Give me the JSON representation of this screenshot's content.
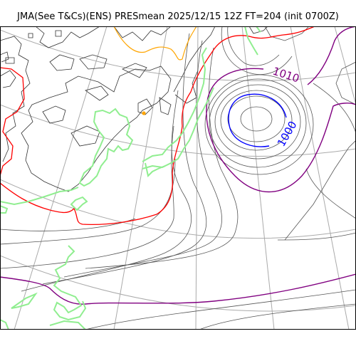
{
  "figure": {
    "title": "JMA(See T&Cs)(ENS) PRESmean 2025/12/15 12Z FT=204 (init 0700Z)"
  },
  "map": {
    "contour_labels": [
      {
        "text": "1010",
        "color": "#800080"
      },
      {
        "text": "1000",
        "color": "#0000ff"
      }
    ],
    "colors": {
      "isobar": "#555555",
      "isobar_1010": "#800080",
      "isobar_1000": "#0000ff",
      "isobar_1020": "#ff0000",
      "coastline": "#333333",
      "graticule": "#aaaaaa",
      "precip_outline": "#90ee90",
      "highlight_contour": "#ffa500"
    }
  }
}
